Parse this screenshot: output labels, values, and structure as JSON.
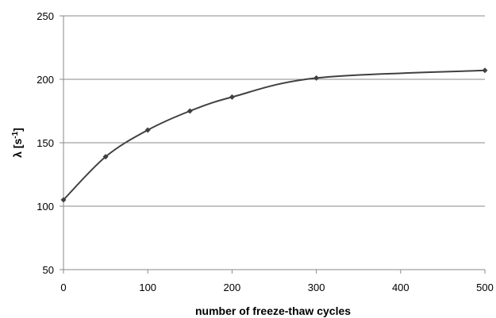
{
  "chart_data": {
    "type": "line",
    "title": "",
    "xlabel": "number of freeze-thaw cycles",
    "ylabel_main": "λ [s",
    "ylabel_sup": "-1",
    "ylabel_close": "]",
    "xlim": [
      0,
      500
    ],
    "ylim": [
      50,
      250
    ],
    "x_ticks": [
      0,
      100,
      200,
      300,
      400,
      500
    ],
    "y_ticks": [
      50,
      100,
      150,
      200,
      250
    ],
    "x_tick_labels": [
      "0",
      "100",
      "200",
      "300",
      "400",
      "500"
    ],
    "y_tick_labels": [
      "50",
      "100",
      "150",
      "200",
      "250"
    ],
    "grid": "horizontal",
    "legend": "none",
    "smooth": true,
    "series": [
      {
        "x": [
          0,
          50,
          100,
          150,
          200,
          300,
          500
        ],
        "y": [
          105,
          139,
          160,
          175,
          186,
          201,
          207
        ],
        "color": "#404040",
        "marker": "diamond"
      }
    ]
  }
}
